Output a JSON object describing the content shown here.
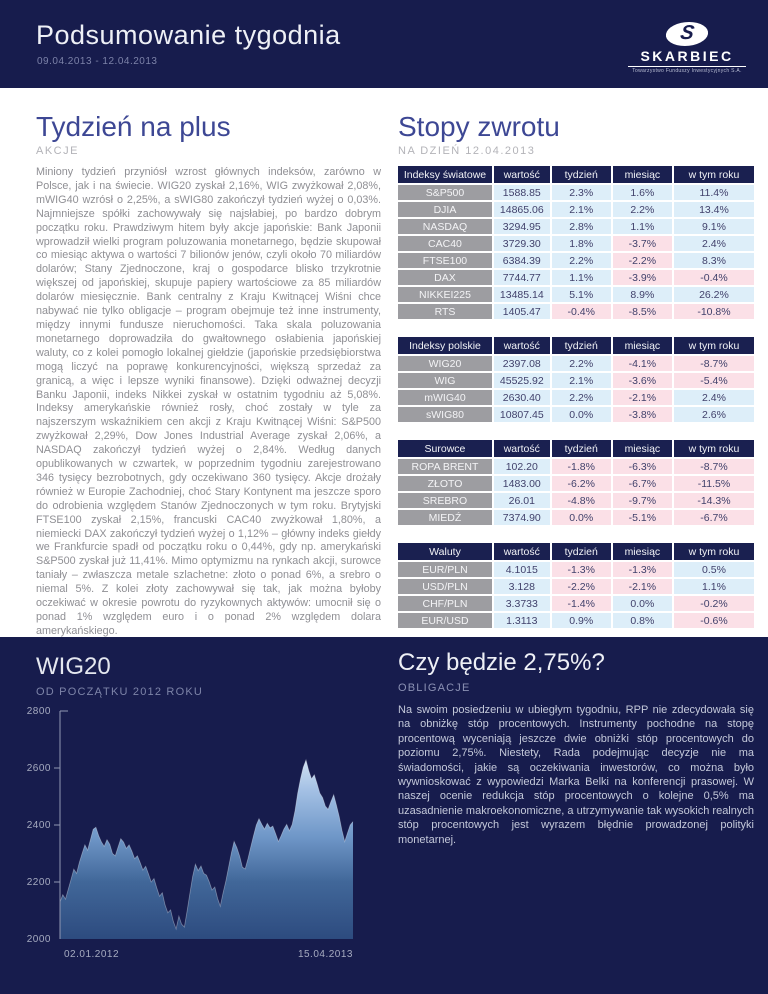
{
  "header": {
    "title": "Podsumowanie tygodnia",
    "date_range": "09.04.2013 - 12.04.2013",
    "logo": {
      "monogram": "S",
      "name": "SKARBIEC",
      "tagline": "Towarzystwo Funduszy Inwestycyjnych S.A."
    }
  },
  "stocks_article": {
    "title": "Tydzień na plus",
    "eyebrow": "AKCJE",
    "body": "Miniony tydzień przyniósł wzrost głównych indeksów, zarówno w Polsce, jak i na świecie. WIG20 zyskał 2,16%, WIG zwyżkował 2,08%, mWIG40 wzrósł o 2,25%, a sWIG80 zakończył tydzień wyżej o 0,03%. Najmniejsze spółki zachowywały się najsłabiej, po bardzo dobrym początku roku. Prawdziwym hitem były akcje japońskie: Bank Japonii wprowadził wielki program poluzowania monetarnego, będzie skupował co miesiąc aktywa o wartości 7 bilionów jenów, czyli około 70 miliardów dolarów; Stany Zjednoczone, kraj o gospodarce blisko trzykrotnie większej od japońskiej, skupuje papiery wartościowe za 85 miliardów dolarów miesięcznie. Bank centralny z Kraju Kwitnącej Wiśni chce nabywać nie tylko obligacje – program obejmuje też inne instrumenty, między innymi fundusze nieruchomości. Taka skala poluzowania monetarnego doprowadziła do gwałtownego osłabienia japońskiej waluty, co z kolei pomogło lokalnej giełdzie (japońskie przedsiębiorstwa mogą liczyć na poprawę konkurencyjności, większą sprzedaż za granicą, a więc i lepsze wyniki finansowe). Dzięki odważnej decyzji Banku Japonii, indeks Nikkei zyskał w ostatnim tygodniu aż 5,08%. Indeksy amerykańskie również rosły, choć zostały w tyle za najszerszym wskaźnikiem cen akcji z Kraju Kwitnącej Wiśni: S&P500 zwyżkował 2,29%, Dow Jones Industrial Average zyskał 2,06%, a NASDAQ zakończył tydzień wyżej o 2,84%. Według danych opublikowanych w czwartek, w poprzednim tygodniu zarejestrowano 346 tysięcy bezrobotnych, gdy oczekiwano 360 tysięcy. Akcje drożały również w Europie Zachodniej, choć Stary Kontynent ma jeszcze sporo do odrobienia względem Stanów Zjednoczonych w tym roku. Brytyjski FTSE100 zyskał 2,15%, francuski CAC40 zwyżkował 1,80%, a niemiecki DAX zakończył tydzień wyżej o 1,12% – główny indeks giełdy we Frankfurcie spadł od początku roku o 0,44%, gdy np. amerykański S&P500 zyskał już 11,41%. Mimo optymizmu na rynkach akcji, surowce taniały – zwłaszcza metale szlachetne: złoto o ponad 6%, a srebro o niemal 5%. Z kolei złoty zachowywał się tak, jak można byłoby oczekiwać w okresie powrotu do ryzykownych aktywów: umocnił się o ponad 1% względem euro i o ponad 2% względem dolara amerykańskiego."
  },
  "returns": {
    "title": "Stopy zwrotu",
    "eyebrow": "NA DZIEŃ 12.04.2013",
    "columns": [
      "wartość",
      "tydzień",
      "miesiąc",
      "w tym roku"
    ],
    "tables": [
      {
        "name": "Indeksy światowe",
        "rows": [
          {
            "label": "S&P500",
            "cells": [
              {
                "v": "1588.85",
                "s": "pos"
              },
              {
                "v": "2.3%",
                "s": "pos"
              },
              {
                "v": "1.6%",
                "s": "pos"
              },
              {
                "v": "11.4%",
                "s": "pos"
              }
            ]
          },
          {
            "label": "DJIA",
            "cells": [
              {
                "v": "14865.06",
                "s": "pos"
              },
              {
                "v": "2.1%",
                "s": "pos"
              },
              {
                "v": "2.2%",
                "s": "pos"
              },
              {
                "v": "13.4%",
                "s": "pos"
              }
            ]
          },
          {
            "label": "NASDAQ",
            "cells": [
              {
                "v": "3294.95",
                "s": "pos"
              },
              {
                "v": "2.8%",
                "s": "pos"
              },
              {
                "v": "1.1%",
                "s": "pos"
              },
              {
                "v": "9.1%",
                "s": "pos"
              }
            ]
          },
          {
            "label": "CAC40",
            "cells": [
              {
                "v": "3729.30",
                "s": "pos"
              },
              {
                "v": "1.8%",
                "s": "pos"
              },
              {
                "v": "-3.7%",
                "s": "neg"
              },
              {
                "v": "2.4%",
                "s": "pos"
              }
            ]
          },
          {
            "label": "FTSE100",
            "cells": [
              {
                "v": "6384.39",
                "s": "pos"
              },
              {
                "v": "2.2%",
                "s": "pos"
              },
              {
                "v": "-2.2%",
                "s": "neg"
              },
              {
                "v": "8.3%",
                "s": "pos"
              }
            ]
          },
          {
            "label": "DAX",
            "cells": [
              {
                "v": "7744.77",
                "s": "pos"
              },
              {
                "v": "1.1%",
                "s": "pos"
              },
              {
                "v": "-3.9%",
                "s": "neg"
              },
              {
                "v": "-0.4%",
                "s": "neg"
              }
            ]
          },
          {
            "label": "NIKKEI225",
            "cells": [
              {
                "v": "13485.14",
                "s": "pos"
              },
              {
                "v": "5.1%",
                "s": "pos"
              },
              {
                "v": "8.9%",
                "s": "pos"
              },
              {
                "v": "26.2%",
                "s": "pos"
              }
            ]
          },
          {
            "label": "RTS",
            "cells": [
              {
                "v": "1405.47",
                "s": "pos"
              },
              {
                "v": "-0.4%",
                "s": "neg"
              },
              {
                "v": "-8.5%",
                "s": "neg"
              },
              {
                "v": "-10.8%",
                "s": "neg"
              }
            ]
          }
        ]
      },
      {
        "name": "Indeksy polskie",
        "rows": [
          {
            "label": "WIG20",
            "cells": [
              {
                "v": "2397.08",
                "s": "pos"
              },
              {
                "v": "2.2%",
                "s": "pos"
              },
              {
                "v": "-4.1%",
                "s": "neg"
              },
              {
                "v": "-8.7%",
                "s": "neg"
              }
            ]
          },
          {
            "label": "WIG",
            "cells": [
              {
                "v": "45525.92",
                "s": "pos"
              },
              {
                "v": "2.1%",
                "s": "pos"
              },
              {
                "v": "-3.6%",
                "s": "neg"
              },
              {
                "v": "-5.4%",
                "s": "neg"
              }
            ]
          },
          {
            "label": "mWIG40",
            "cells": [
              {
                "v": "2630.40",
                "s": "pos"
              },
              {
                "v": "2.2%",
                "s": "pos"
              },
              {
                "v": "-2.1%",
                "s": "neg"
              },
              {
                "v": "2.4%",
                "s": "pos"
              }
            ]
          },
          {
            "label": "sWIG80",
            "cells": [
              {
                "v": "10807.45",
                "s": "pos"
              },
              {
                "v": "0.0%",
                "s": "pos"
              },
              {
                "v": "-3.8%",
                "s": "neg"
              },
              {
                "v": "2.6%",
                "s": "pos"
              }
            ]
          }
        ]
      },
      {
        "name": "Surowce",
        "rows": [
          {
            "label": "ROPA BRENT",
            "cells": [
              {
                "v": "102.20",
                "s": "pos"
              },
              {
                "v": "-1.8%",
                "s": "neg"
              },
              {
                "v": "-6.3%",
                "s": "neg"
              },
              {
                "v": "-8.7%",
                "s": "neg"
              }
            ]
          },
          {
            "label": "ZŁOTO",
            "cells": [
              {
                "v": "1483.00",
                "s": "pos"
              },
              {
                "v": "-6.2%",
                "s": "neg"
              },
              {
                "v": "-6.7%",
                "s": "neg"
              },
              {
                "v": "-11.5%",
                "s": "neg"
              }
            ]
          },
          {
            "label": "SREBRO",
            "cells": [
              {
                "v": "26.01",
                "s": "pos"
              },
              {
                "v": "-4.8%",
                "s": "neg"
              },
              {
                "v": "-9.7%",
                "s": "neg"
              },
              {
                "v": "-14.3%",
                "s": "neg"
              }
            ]
          },
          {
            "label": "MIEDŹ",
            "cells": [
              {
                "v": "7374.90",
                "s": "pos"
              },
              {
                "v": "0.0%",
                "s": "neg"
              },
              {
                "v": "-5.1%",
                "s": "neg"
              },
              {
                "v": "-6.7%",
                "s": "neg"
              }
            ]
          }
        ]
      },
      {
        "name": "Waluty",
        "rows": [
          {
            "label": "EUR/PLN",
            "cells": [
              {
                "v": "4.1015",
                "s": "pos"
              },
              {
                "v": "-1.3%",
                "s": "neg"
              },
              {
                "v": "-1.3%",
                "s": "neg"
              },
              {
                "v": "0.5%",
                "s": "pos"
              }
            ]
          },
          {
            "label": "USD/PLN",
            "cells": [
              {
                "v": "3.128",
                "s": "pos"
              },
              {
                "v": "-2.2%",
                "s": "neg"
              },
              {
                "v": "-2.1%",
                "s": "neg"
              },
              {
                "v": "1.1%",
                "s": "pos"
              }
            ]
          },
          {
            "label": "CHF/PLN",
            "cells": [
              {
                "v": "3.3733",
                "s": "pos"
              },
              {
                "v": "-1.4%",
                "s": "neg"
              },
              {
                "v": "0.0%",
                "s": "pos"
              },
              {
                "v": "-0.2%",
                "s": "neg"
              }
            ]
          },
          {
            "label": "EUR/USD",
            "cells": [
              {
                "v": "1.3113",
                "s": "pos"
              },
              {
                "v": "0.9%",
                "s": "pos"
              },
              {
                "v": "0.8%",
                "s": "pos"
              },
              {
                "v": "-0.6%",
                "s": "neg"
              }
            ]
          }
        ]
      }
    ]
  },
  "chart_data": {
    "type": "area",
    "title": "WIG20",
    "subtitle": "OD POCZĄTKU 2012 ROKU",
    "ylim": [
      2000,
      2800
    ],
    "yticks": [
      2000,
      2200,
      2400,
      2600,
      2800
    ],
    "x_start_label": "02.01.2012",
    "x_end_label": "15.04.2013",
    "values": [
      2130,
      2155,
      2140,
      2175,
      2210,
      2245,
      2230,
      2268,
      2300,
      2330,
      2312,
      2348,
      2385,
      2392,
      2362,
      2340,
      2325,
      2348,
      2332,
      2300,
      2292,
      2322,
      2352,
      2340,
      2318,
      2330,
      2308,
      2282,
      2292,
      2268,
      2242,
      2255,
      2228,
      2200,
      2212,
      2180,
      2150,
      2162,
      2120,
      2092,
      2102,
      2062,
      2035,
      2080,
      2052,
      2042,
      2100,
      2160,
      2220,
      2262,
      2240,
      2256,
      2230,
      2224,
      2200,
      2172,
      2182,
      2142,
      2115,
      2162,
      2202,
      2252,
      2302,
      2342,
      2320,
      2290,
      2252,
      2246,
      2282,
      2322,
      2362,
      2400,
      2422,
      2402,
      2386,
      2406,
      2390,
      2396,
      2370,
      2342,
      2362,
      2386,
      2402,
      2380,
      2402,
      2450,
      2512,
      2562,
      2602,
      2628,
      2590,
      2562,
      2576,
      2545,
      2512,
      2496,
      2466,
      2455,
      2482,
      2506,
      2470,
      2430,
      2382,
      2342,
      2372,
      2400,
      2412
    ]
  },
  "bonds_article": {
    "title": "Czy będzie 2,75%?",
    "eyebrow": "OBLIGACJE",
    "body": "Na swoim posiedzeniu w ubiegłym tygodniu, RPP nie zdecydowała się na obniżkę stóp procentowych. Instrumenty pochodne na stopę procentową wyceniają jeszcze dwie obniżki stóp procentowych do poziomu 2,75%. Niestety, Rada podejmując decyzje nie ma świadomości, jakie są oczekiwania inwestorów, co można było wywnioskować z wypowiedzi Marka Belki na konferencji prasowej. W naszej ocenie redukcja stóp procentowych o kolejne 0,5% ma uzasadnienie makroekonomiczne, a utrzymywanie tak wysokich realnych stóp procentowych jest wyrazem błędnie prowadzonej polityki monetarnej."
  },
  "colors": {
    "navy": "#171c4d",
    "heading_blue": "#3d4794",
    "table_header_bg": "#1a2050",
    "row_label_bg": "#9d9da1",
    "positive_bg": "#ddeef9",
    "negative_bg": "#fbe0e7",
    "cell_text": "#41416b"
  }
}
